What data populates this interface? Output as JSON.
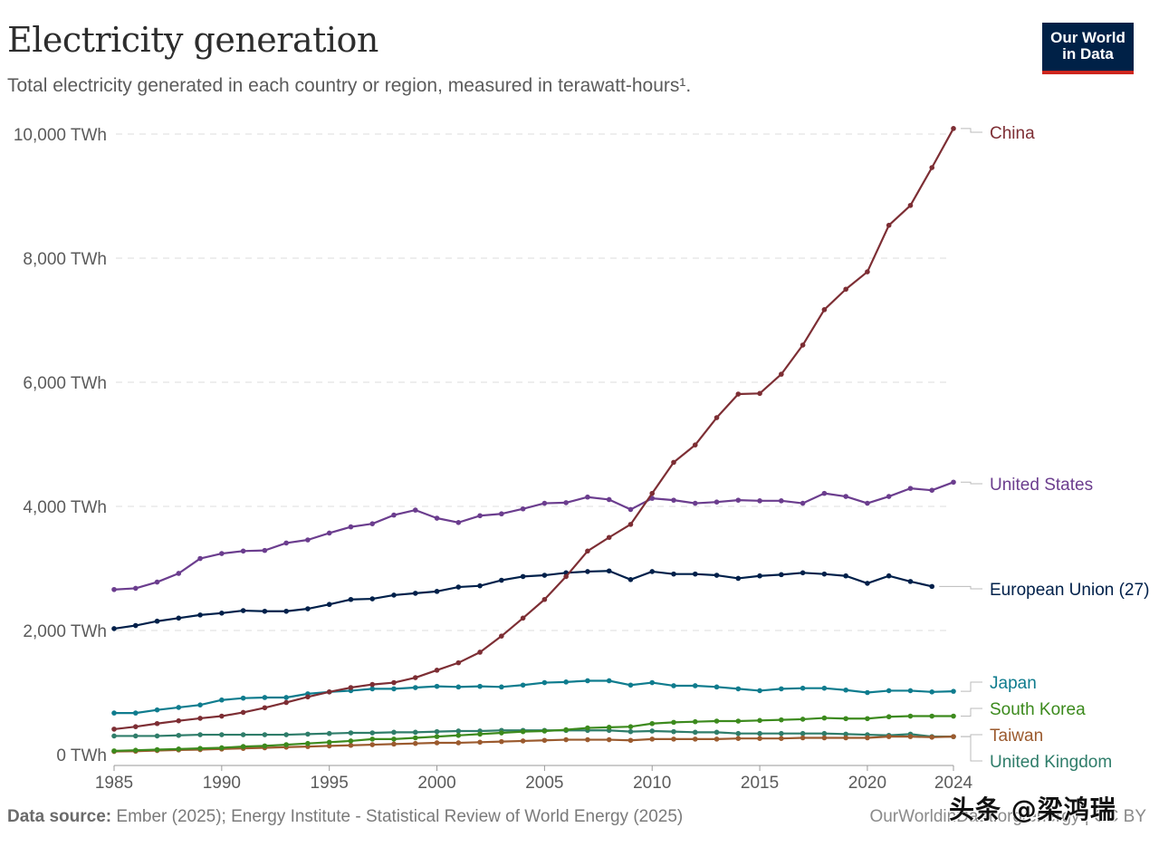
{
  "header": {
    "title": "Electricity generation",
    "subtitle": "Total electricity generated in each country or region, measured in terawatt-hours¹."
  },
  "logo": {
    "line1": "Our World",
    "line2": "in Data",
    "bg_color": "#002147",
    "accent_color": "#ce261e"
  },
  "footer": {
    "source_label": "Data source:",
    "source_text": "Ember (2025); Energy Institute - Statistical Review of World Energy (2025)",
    "url_text": "OurWorldinData.org/energy | CC BY"
  },
  "watermark": {
    "text": "头条 @梁鸿瑞"
  },
  "chart_data": {
    "type": "line",
    "title": "Electricity generation",
    "xlabel": "",
    "ylabel": "",
    "x_range": [
      1985,
      2024
    ],
    "ylim": [
      0,
      10000
    ],
    "grid": "horizontal dashed",
    "legend": "right (end-of-line labels)",
    "y_ticks": [
      {
        "value": 0,
        "label": "0 TWh"
      },
      {
        "value": 2000,
        "label": "2,000 TWh"
      },
      {
        "value": 4000,
        "label": "4,000 TWh"
      },
      {
        "value": 6000,
        "label": "6,000 TWh"
      },
      {
        "value": 8000,
        "label": "8,000 TWh"
      },
      {
        "value": 10000,
        "label": "10,000 TWh"
      }
    ],
    "x_ticks": [
      {
        "value": 1985,
        "label": "1985"
      },
      {
        "value": 1990,
        "label": "1990"
      },
      {
        "value": 1995,
        "label": "1995"
      },
      {
        "value": 2000,
        "label": "2000"
      },
      {
        "value": 2005,
        "label": "2005"
      },
      {
        "value": 2010,
        "label": "2010"
      },
      {
        "value": 2015,
        "label": "2015"
      },
      {
        "value": 2020,
        "label": "2020"
      },
      {
        "value": 2024,
        "label": "2024"
      }
    ],
    "series": [
      {
        "name": "China",
        "color": "#7d2e34",
        "start_year": 1985,
        "values": [
          410,
          450,
          500,
          545,
          585,
          620,
          680,
          755,
          840,
          930,
          1010,
          1080,
          1130,
          1160,
          1240,
          1360,
          1480,
          1650,
          1910,
          2200,
          2500,
          2870,
          3280,
          3500,
          3710,
          4210,
          4710,
          4990,
          5430,
          5810,
          5820,
          6130,
          6600,
          7170,
          7500,
          7780,
          8530,
          8850,
          9460,
          10090
        ]
      },
      {
        "name": "United States",
        "color": "#6b3d8e",
        "start_year": 1985,
        "values": [
          2660,
          2680,
          2780,
          2920,
          3160,
          3240,
          3280,
          3290,
          3410,
          3460,
          3570,
          3670,
          3720,
          3860,
          3940,
          3810,
          3740,
          3850,
          3880,
          3960,
          4050,
          4060,
          4150,
          4110,
          3950,
          4130,
          4100,
          4050,
          4070,
          4100,
          4090,
          4090,
          4050,
          4210,
          4160,
          4050,
          4160,
          4290,
          4260,
          4390
        ]
      },
      {
        "name": "European Union (27)",
        "color": "#00204a",
        "start_year": 1985,
        "values": [
          2030,
          2080,
          2150,
          2200,
          2250,
          2280,
          2320,
          2310,
          2310,
          2350,
          2420,
          2500,
          2510,
          2570,
          2600,
          2630,
          2700,
          2720,
          2810,
          2870,
          2890,
          2930,
          2950,
          2960,
          2820,
          2950,
          2910,
          2910,
          2890,
          2840,
          2880,
          2900,
          2930,
          2910,
          2880,
          2760,
          2880,
          2790,
          2710
        ]
      },
      {
        "name": "Japan",
        "color": "#0f7c8e",
        "start_year": 1985,
        "values": [
          670,
          670,
          720,
          760,
          800,
          880,
          910,
          920,
          920,
          980,
          1010,
          1030,
          1060,
          1060,
          1080,
          1100,
          1090,
          1100,
          1090,
          1120,
          1160,
          1170,
          1190,
          1190,
          1120,
          1160,
          1110,
          1110,
          1090,
          1060,
          1030,
          1060,
          1070,
          1070,
          1040,
          1000,
          1030,
          1030,
          1010,
          1020
        ]
      },
      {
        "name": "South Korea",
        "color": "#3c8a1d",
        "start_year": 1985,
        "values": [
          60,
          70,
          80,
          90,
          100,
          110,
          130,
          140,
          160,
          180,
          200,
          220,
          250,
          250,
          270,
          290,
          310,
          330,
          350,
          370,
          380,
          400,
          430,
          440,
          450,
          500,
          520,
          530,
          540,
          540,
          550,
          560,
          570,
          590,
          580,
          580,
          610,
          620,
          620,
          620
        ]
      },
      {
        "name": "Taiwan",
        "color": "#9b5a2e",
        "start_year": 1985,
        "values": [
          50,
          55,
          65,
          75,
          80,
          90,
          100,
          110,
          120,
          130,
          140,
          150,
          160,
          170,
          180,
          190,
          190,
          200,
          210,
          220,
          230,
          240,
          240,
          240,
          230,
          250,
          250,
          250,
          250,
          260,
          260,
          260,
          270,
          270,
          270,
          270,
          290,
          290,
          280,
          290
        ]
      },
      {
        "name": "United Kingdom",
        "color": "#2f7d6a",
        "start_year": 1985,
        "values": [
          300,
          300,
          300,
          310,
          320,
          320,
          320,
          320,
          320,
          330,
          340,
          350,
          350,
          360,
          360,
          370,
          380,
          380,
          390,
          390,
          390,
          390,
          390,
          390,
          370,
          380,
          370,
          360,
          360,
          340,
          340,
          340,
          340,
          340,
          330,
          320,
          310,
          330,
          290,
          290
        ]
      }
    ]
  }
}
